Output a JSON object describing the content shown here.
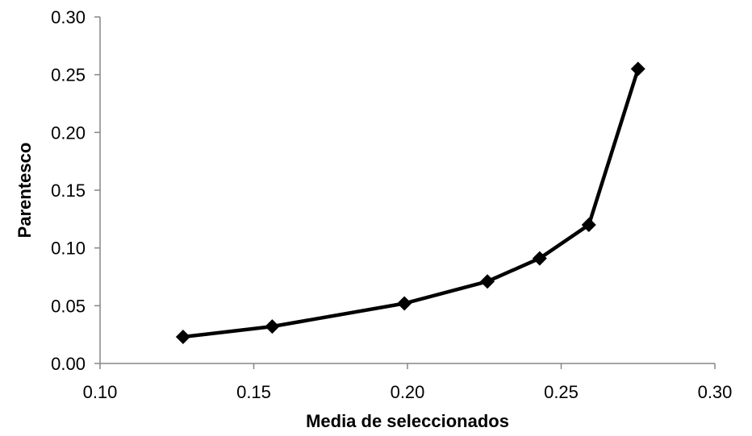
{
  "chart_data": {
    "type": "line",
    "title": "",
    "xlabel": "Media de seleccionados",
    "ylabel": "Parentesco",
    "xlim": [
      0.1,
      0.3
    ],
    "ylim": [
      0.0,
      0.3
    ],
    "x_ticks": [
      "0.10",
      "0.15",
      "0.20",
      "0.25",
      "0.30"
    ],
    "y_ticks": [
      "0.00",
      "0.05",
      "0.10",
      "0.15",
      "0.20",
      "0.25",
      "0.30"
    ],
    "grid": false,
    "legend": "none",
    "series": [
      {
        "marker": "diamond",
        "color": "#000000",
        "points": [
          {
            "x": 0.127,
            "y": 0.023
          },
          {
            "x": 0.156,
            "y": 0.032
          },
          {
            "x": 0.199,
            "y": 0.052
          },
          {
            "x": 0.226,
            "y": 0.071
          },
          {
            "x": 0.243,
            "y": 0.091
          },
          {
            "x": 0.259,
            "y": 0.12
          },
          {
            "x": 0.275,
            "y": 0.255
          }
        ]
      }
    ]
  }
}
